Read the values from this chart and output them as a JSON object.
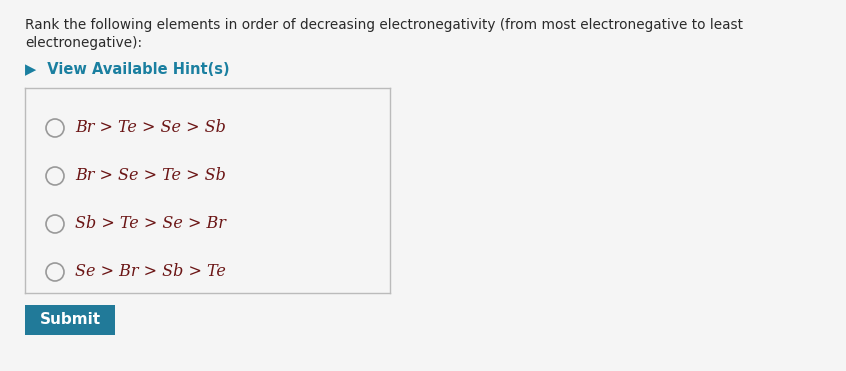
{
  "background_color": "#f5f5f5",
  "question_text_line1": "Rank the following elements in order of decreasing electronegativity (from most electronegative to least",
  "question_text_line2": "electronegative):",
  "hint_arrow": "▶",
  "hint_label": "  View Available Hint(s)",
  "hint_color": "#1a7fa0",
  "options": [
    "Br > Te > Se > Sb",
    "Br > Se > Te > Sb",
    "Sb > Te > Se > Br",
    "Se > Br > Sb > Te"
  ],
  "option_text_color": "#6b1515",
  "question_text_color": "#2a2a2a",
  "box_border_color": "#bbbbbb",
  "submit_button_color": "#217a99",
  "submit_text": "Submit",
  "submit_text_color": "#ffffff",
  "circle_edge_color": "#999999",
  "font_size_question": 9.8,
  "font_size_options": 11.5,
  "font_size_hint": 10.5,
  "font_size_submit": 11.0
}
